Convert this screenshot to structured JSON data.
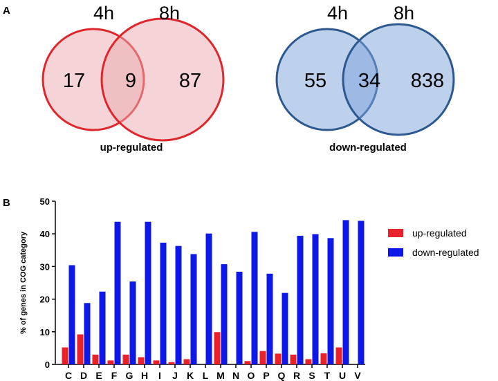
{
  "panels": {
    "a_label": "A",
    "b_label": "B"
  },
  "venn": {
    "up": {
      "title": "up-regulated",
      "set_a": "4h",
      "set_b": "8h",
      "only_a": "17",
      "both": "9",
      "only_b": "87",
      "fill_color": "#e9a9ad",
      "stroke_color": "#e0262d"
    },
    "down": {
      "title": "down-regulated",
      "set_a": "4h",
      "set_b": "8h",
      "only_a": "55",
      "both": "34",
      "only_b": "838",
      "fill_color": "#7ba3d9",
      "stroke_color": "#2c578f"
    }
  },
  "chart_data": {
    "type": "bar",
    "ylabel": "% of genes in COG category",
    "ylim": [
      0,
      50
    ],
    "yticks": [
      0,
      10,
      20,
      30,
      40,
      50
    ],
    "categories": [
      "C",
      "D",
      "E",
      "F",
      "G",
      "H",
      "I",
      "J",
      "K",
      "L",
      "M",
      "N",
      "O",
      "P",
      "Q",
      "R",
      "S",
      "T",
      "U",
      "V"
    ],
    "series": [
      {
        "name": "up-regulated",
        "color": "#e8212a",
        "values": [
          5.2,
          9.2,
          3.0,
          1.2,
          3.0,
          2.2,
          1.2,
          0.7,
          1.6,
          0,
          9.9,
          0,
          1.0,
          4.1,
          3.3,
          3.0,
          1.6,
          3.4,
          5.2,
          0
        ]
      },
      {
        "name": "down-regulated",
        "color": "#0d17e8",
        "values": [
          30.4,
          18.8,
          22.3,
          43.7,
          25.4,
          43.7,
          37.3,
          36.3,
          33.8,
          40.1,
          30.7,
          28.4,
          40.6,
          27.8,
          21.9,
          39.4,
          39.9,
          38.7,
          44.2,
          44.0
        ]
      }
    ],
    "legend_position": "right"
  }
}
